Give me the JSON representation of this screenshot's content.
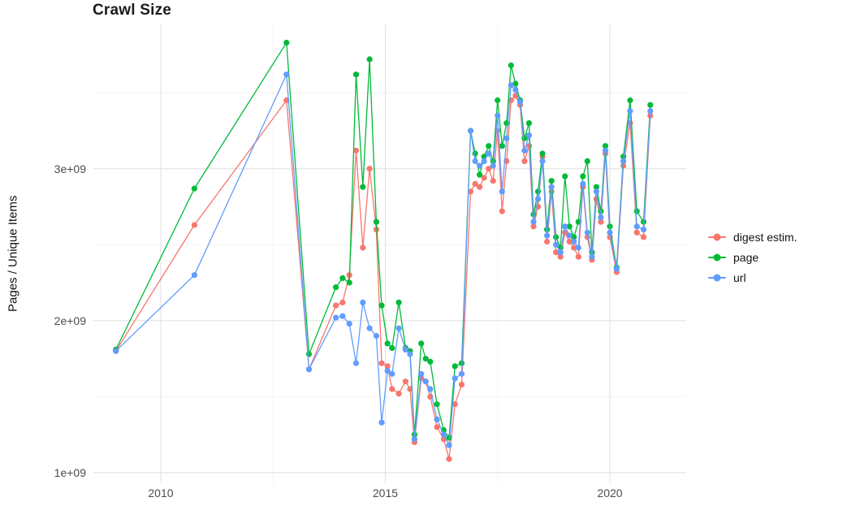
{
  "chart_data": {
    "type": "line",
    "title": "Crawl Size",
    "xlabel": "",
    "ylabel": "Pages / Unique Items",
    "xlim": [
      2008.5,
      2021.7
    ],
    "ylim": [
      930000000.0,
      3950000000.0
    ],
    "grid": true,
    "legend_position": "right",
    "colors": {
      "grid_major": "#e4e4e4",
      "grid_minor": "#f2f2f2"
    },
    "xticks": [
      {
        "value": 2010,
        "label": "2010"
      },
      {
        "value": 2015,
        "label": "2015"
      },
      {
        "value": 2020,
        "label": "2020"
      }
    ],
    "yticks": [
      {
        "value": 1000000000.0,
        "label": "1e+09"
      },
      {
        "value": 2000000000.0,
        "label": "2e+09"
      },
      {
        "value": 3000000000.0,
        "label": "3e+09"
      }
    ],
    "x_minor": [
      2012.5,
      2017.5
    ],
    "y_minor": [
      1500000000.0,
      2500000000.0,
      3500000000.0
    ],
    "x": [
      2009.0,
      2010.75,
      2012.8,
      2013.3,
      2013.9,
      2014.05,
      2014.2,
      2014.35,
      2014.5,
      2014.65,
      2014.8,
      2014.92,
      2015.05,
      2015.15,
      2015.3,
      2015.45,
      2015.55,
      2015.65,
      2015.8,
      2015.9,
      2016.0,
      2016.15,
      2016.3,
      2016.42,
      2016.55,
      2016.7,
      2016.9,
      2017.0,
      2017.1,
      2017.2,
      2017.3,
      2017.4,
      2017.5,
      2017.6,
      2017.7,
      2017.8,
      2017.9,
      2018.0,
      2018.1,
      2018.2,
      2018.3,
      2018.4,
      2018.5,
      2018.6,
      2018.7,
      2018.8,
      2018.9,
      2019.0,
      2019.1,
      2019.2,
      2019.3,
      2019.4,
      2019.5,
      2019.6,
      2019.7,
      2019.8,
      2019.9,
      2020.0,
      2020.15,
      2020.3,
      2020.45,
      2020.6,
      2020.75,
      2020.9
    ],
    "series": [
      {
        "name": "digest estim.",
        "color": "#F8766D",
        "values": [
          1800000000.0,
          2630000000.0,
          3450000000.0,
          1680000000.0,
          2100000000.0,
          2120000000.0,
          2300000000.0,
          3120000000.0,
          2480000000.0,
          3000000000.0,
          2600000000.0,
          1720000000.0,
          1700000000.0,
          1550000000.0,
          1520000000.0,
          1600000000.0,
          1550000000.0,
          1200000000.0,
          1620000000.0,
          1600000000.0,
          1500000000.0,
          1300000000.0,
          1220000000.0,
          1090000000.0,
          1450000000.0,
          1580000000.0,
          2850000000.0,
          2900000000.0,
          2880000000.0,
          2940000000.0,
          3000000000.0,
          2920000000.0,
          3250000000.0,
          2720000000.0,
          3050000000.0,
          3450000000.0,
          3480000000.0,
          3420000000.0,
          3050000000.0,
          3150000000.0,
          2620000000.0,
          2750000000.0,
          3080000000.0,
          2520000000.0,
          2850000000.0,
          2450000000.0,
          2420000000.0,
          2580000000.0,
          2520000000.0,
          2480000000.0,
          2420000000.0,
          2880000000.0,
          2550000000.0,
          2400000000.0,
          2800000000.0,
          2650000000.0,
          3100000000.0,
          2550000000.0,
          2320000000.0,
          3020000000.0,
          3300000000.0,
          2580000000.0,
          2550000000.0,
          3350000000.0
        ]
      },
      {
        "name": "page",
        "color": "#00BA38",
        "values": [
          1810000000.0,
          2870000000.0,
          3830000000.0,
          1780000000.0,
          2220000000.0,
          2280000000.0,
          2250000000.0,
          3620000000.0,
          2880000000.0,
          3720000000.0,
          2650000000.0,
          2100000000.0,
          1850000000.0,
          1820000000.0,
          2120000000.0,
          1820000000.0,
          1800000000.0,
          1250000000.0,
          1850000000.0,
          1750000000.0,
          1730000000.0,
          1450000000.0,
          1280000000.0,
          1230000000.0,
          1700000000.0,
          1720000000.0,
          3250000000.0,
          3100000000.0,
          2960000000.0,
          3080000000.0,
          3150000000.0,
          3050000000.0,
          3450000000.0,
          3150000000.0,
          3300000000.0,
          3680000000.0,
          3560000000.0,
          3450000000.0,
          3200000000.0,
          3300000000.0,
          2700000000.0,
          2850000000.0,
          3100000000.0,
          2600000000.0,
          2920000000.0,
          2550000000.0,
          2480000000.0,
          2950000000.0,
          2620000000.0,
          2550000000.0,
          2650000000.0,
          2950000000.0,
          3050000000.0,
          2450000000.0,
          2880000000.0,
          2720000000.0,
          3150000000.0,
          2620000000.0,
          2350000000.0,
          3080000000.0,
          3450000000.0,
          2720000000.0,
          2650000000.0,
          3420000000.0
        ]
      },
      {
        "name": "url",
        "color": "#619CFF",
        "values": [
          1800000000.0,
          2300000000.0,
          3620000000.0,
          1680000000.0,
          2020000000.0,
          2030000000.0,
          1980000000.0,
          1720000000.0,
          2120000000.0,
          1950000000.0,
          1900000000.0,
          1330000000.0,
          1670000000.0,
          1650000000.0,
          1950000000.0,
          1810000000.0,
          1780000000.0,
          1220000000.0,
          1650000000.0,
          1600000000.0,
          1550000000.0,
          1350000000.0,
          1250000000.0,
          1180000000.0,
          1620000000.0,
          1650000000.0,
          3250000000.0,
          3050000000.0,
          3020000000.0,
          3050000000.0,
          3100000000.0,
          3020000000.0,
          3350000000.0,
          2850000000.0,
          3200000000.0,
          3550000000.0,
          3520000000.0,
          3440000000.0,
          3120000000.0,
          3220000000.0,
          2650000000.0,
          2800000000.0,
          3050000000.0,
          2560000000.0,
          2880000000.0,
          2500000000.0,
          2450000000.0,
          2620000000.0,
          2560000000.0,
          2520000000.0,
          2480000000.0,
          2900000000.0,
          2580000000.0,
          2420000000.0,
          2850000000.0,
          2680000000.0,
          3120000000.0,
          2580000000.0,
          2340000000.0,
          3050000000.0,
          3380000000.0,
          2620000000.0,
          2600000000.0,
          3380000000.0
        ]
      }
    ]
  }
}
